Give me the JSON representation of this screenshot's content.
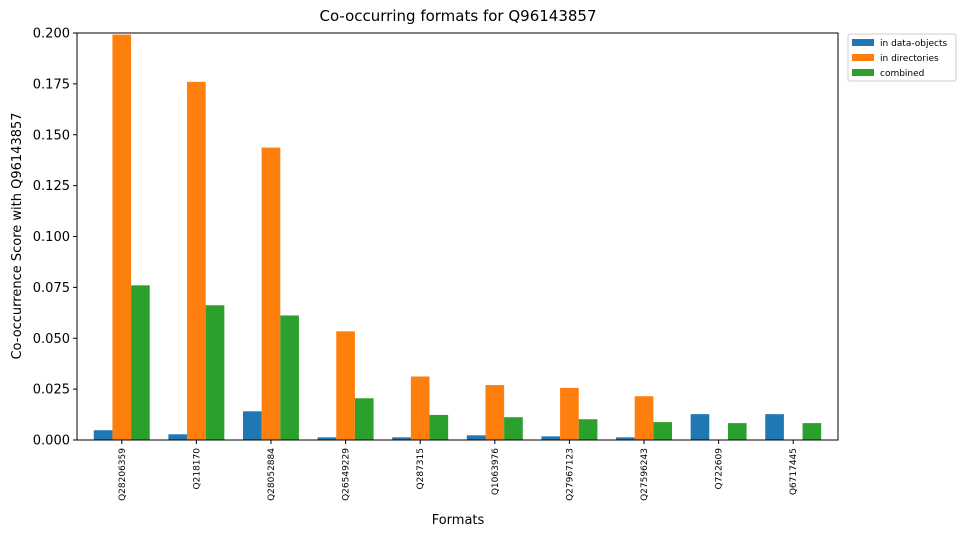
{
  "chart_data": {
    "type": "bar",
    "title": "Co-occurring formats for Q96143857",
    "xlabel": "Formats",
    "ylabel": "Co-occurrence Score with Q96143857",
    "ylim": [
      0,
      0.2
    ],
    "yticks": [
      "0.000",
      "0.025",
      "0.050",
      "0.075",
      "0.100",
      "0.125",
      "0.150",
      "0.175",
      "0.200"
    ],
    "categories": [
      "Q28206359",
      "Q218170",
      "Q28052884",
      "Q26549229",
      "Q287315",
      "Q1063976",
      "Q27967123",
      "Q27596243",
      "Q722609",
      "Q6717445"
    ],
    "series": [
      {
        "name": "in data-objects",
        "color": "#1f77b4",
        "values": [
          0.0048,
          0.0028,
          0.0141,
          0.0013,
          0.0013,
          0.0023,
          0.0018,
          0.0013,
          0.0127,
          0.0127
        ]
      },
      {
        "name": "in directories",
        "color": "#ff7f0e",
        "values": [
          0.1992,
          0.176,
          0.1437,
          0.0534,
          0.0312,
          0.027,
          0.0256,
          0.0215,
          0.0,
          0.0
        ]
      },
      {
        "name": "combined",
        "color": "#2ca02c",
        "values": [
          0.076,
          0.0662,
          0.0612,
          0.0205,
          0.0123,
          0.0112,
          0.0102,
          0.0088,
          0.0083,
          0.0083
        ]
      }
    ],
    "grid": false,
    "legend": "upper-right-outside"
  }
}
